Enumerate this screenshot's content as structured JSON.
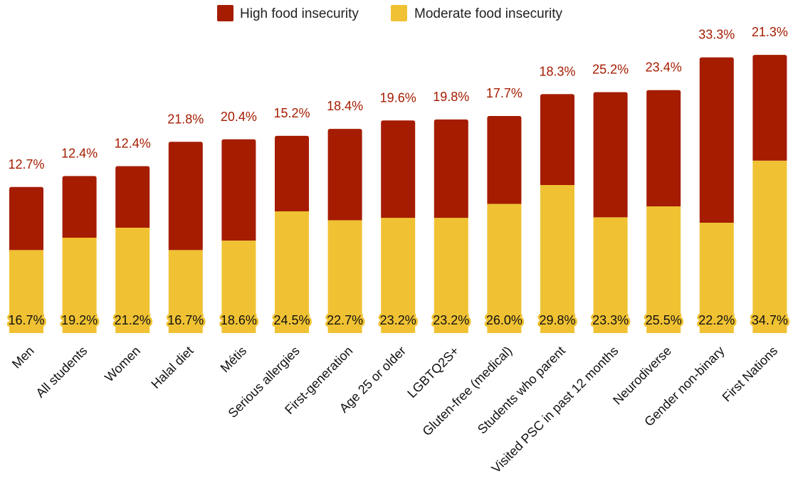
{
  "chart_data": {
    "type": "bar",
    "stacked": true,
    "legend_position": "top-center",
    "grid": false,
    "categories": [
      "Men",
      "All students",
      "Women",
      "Halal diet",
      "Métis",
      "Serious allergies",
      "First-generation",
      "Age 25 or older",
      "LGBTQ2S+",
      "Gluten-free (medical)",
      "Students who parent",
      "Visited PSC in past 12 months",
      "Neurodiverse",
      "Gender non-binary",
      "First Nations"
    ],
    "series": [
      {
        "name": "Moderate food insecurity",
        "color": "#F0C233",
        "values": [
          16.7,
          19.2,
          21.2,
          16.7,
          18.6,
          24.5,
          22.7,
          23.2,
          23.2,
          26.0,
          29.8,
          23.3,
          25.5,
          22.2,
          34.7
        ],
        "labels": [
          "16.7%",
          "19.2%",
          "21.2%",
          "16.7%",
          "18.6%",
          "24.5%",
          "22.7%",
          "23.2%",
          "23.2%",
          "26.0%",
          "29.8%",
          "23.3%",
          "25.5%",
          "22.2%",
          "34.7%"
        ]
      },
      {
        "name": "High food insecurity",
        "color": "#A51C00",
        "values": [
          12.7,
          12.4,
          12.4,
          21.8,
          20.4,
          15.2,
          18.4,
          19.6,
          19.8,
          17.7,
          18.3,
          25.2,
          23.4,
          33.3,
          21.3
        ],
        "labels": [
          "12.7%",
          "12.4%",
          "12.4%",
          "21.8%",
          "20.4%",
          "15.2%",
          "18.4%",
          "19.6%",
          "19.8%",
          "17.7%",
          "18.3%",
          "25.2%",
          "23.4%",
          "33.3%",
          "21.3%"
        ]
      }
    ],
    "legend": [
      {
        "name": "High food insecurity",
        "color": "#A51C00"
      },
      {
        "name": "Moderate food insecurity",
        "color": "#F0C233"
      }
    ]
  }
}
